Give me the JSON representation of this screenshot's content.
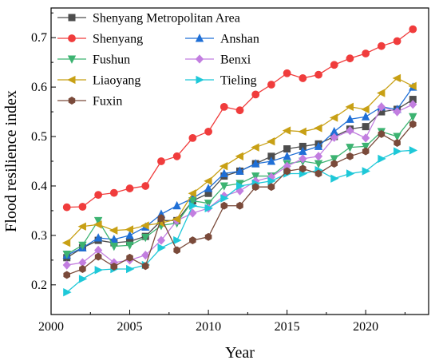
{
  "chart_data": {
    "type": "line",
    "xlabel": "Year",
    "ylabel": "Flood resilience index",
    "xlim": [
      2000,
      2024
    ],
    "ylim": [
      0.14,
      0.76
    ],
    "xticks": [
      2000,
      2005,
      2010,
      2015,
      2020
    ],
    "yticks": [
      0.2,
      0.3,
      0.4,
      0.5,
      0.6,
      0.7
    ],
    "grid": false,
    "legend": "top-left",
    "x": [
      2001,
      2002,
      2003,
      2004,
      2005,
      2006,
      2007,
      2008,
      2009,
      2010,
      2011,
      2012,
      2013,
      2014,
      2015,
      2016,
      2017,
      2018,
      2019,
      2020,
      2021,
      2022,
      2023
    ],
    "series": [
      {
        "name": "Shenyang Metropolitan Area",
        "color": "#4d4d4d",
        "marker": "square",
        "values": [
          0.255,
          0.275,
          0.29,
          0.285,
          0.288,
          0.298,
          0.33,
          0.33,
          0.37,
          0.385,
          0.42,
          0.43,
          0.445,
          0.46,
          0.475,
          0.48,
          0.485,
          0.5,
          0.515,
          0.52,
          0.55,
          0.555,
          0.575
        ]
      },
      {
        "name": "Shenyang",
        "color": "#f03c3c",
        "marker": "circle",
        "values": [
          0.357,
          0.358,
          0.382,
          0.386,
          0.395,
          0.4,
          0.45,
          0.46,
          0.497,
          0.51,
          0.56,
          0.553,
          0.585,
          0.605,
          0.628,
          0.618,
          0.625,
          0.645,
          0.658,
          0.668,
          0.683,
          0.693,
          0.717
        ]
      },
      {
        "name": "Anshan",
        "color": "#1f6fd6",
        "marker": "triangle-up",
        "values": [
          0.26,
          0.275,
          0.295,
          0.292,
          0.3,
          0.317,
          0.343,
          0.36,
          0.375,
          0.395,
          0.425,
          0.43,
          0.445,
          0.45,
          0.46,
          0.47,
          0.48,
          0.51,
          0.535,
          0.54,
          0.56,
          0.555,
          0.6
        ]
      },
      {
        "name": "Fushun",
        "color": "#3cb371",
        "marker": "triangle-down",
        "values": [
          0.262,
          0.28,
          0.33,
          0.278,
          0.28,
          0.296,
          0.32,
          0.325,
          0.37,
          0.365,
          0.4,
          0.405,
          0.42,
          0.42,
          0.445,
          0.45,
          0.445,
          0.455,
          0.478,
          0.48,
          0.51,
          0.5,
          0.54
        ]
      },
      {
        "name": "Benxi",
        "color": "#c27ee0",
        "marker": "diamond",
        "values": [
          0.24,
          0.245,
          0.27,
          0.245,
          0.25,
          0.26,
          0.29,
          0.33,
          0.345,
          0.355,
          0.38,
          0.39,
          0.41,
          0.418,
          0.44,
          0.455,
          0.46,
          0.498,
          0.512,
          0.497,
          0.56,
          0.55,
          0.565
        ]
      },
      {
        "name": "Liaoyang",
        "color": "#c8a015",
        "marker": "triangle-left",
        "values": [
          0.285,
          0.318,
          0.322,
          0.31,
          0.312,
          0.32,
          0.325,
          0.333,
          0.385,
          0.41,
          0.44,
          0.46,
          0.478,
          0.49,
          0.512,
          0.51,
          0.517,
          0.538,
          0.56,
          0.555,
          0.588,
          0.618,
          0.602
        ]
      },
      {
        "name": "Tieling",
        "color": "#1ec8d8",
        "marker": "triangle-right",
        "values": [
          0.185,
          0.212,
          0.23,
          0.232,
          0.232,
          0.24,
          0.275,
          0.29,
          0.36,
          0.355,
          0.375,
          0.4,
          0.405,
          0.41,
          0.425,
          0.425,
          0.432,
          0.415,
          0.425,
          0.43,
          0.455,
          0.47,
          0.472
        ]
      },
      {
        "name": "Fuxin",
        "color": "#7a4a3a",
        "marker": "hexagon",
        "values": [
          0.22,
          0.232,
          0.257,
          0.237,
          0.255,
          0.238,
          0.335,
          0.27,
          0.29,
          0.297,
          0.36,
          0.36,
          0.398,
          0.398,
          0.43,
          0.435,
          0.425,
          0.445,
          0.46,
          0.47,
          0.505,
          0.487,
          0.525
        ]
      }
    ]
  }
}
